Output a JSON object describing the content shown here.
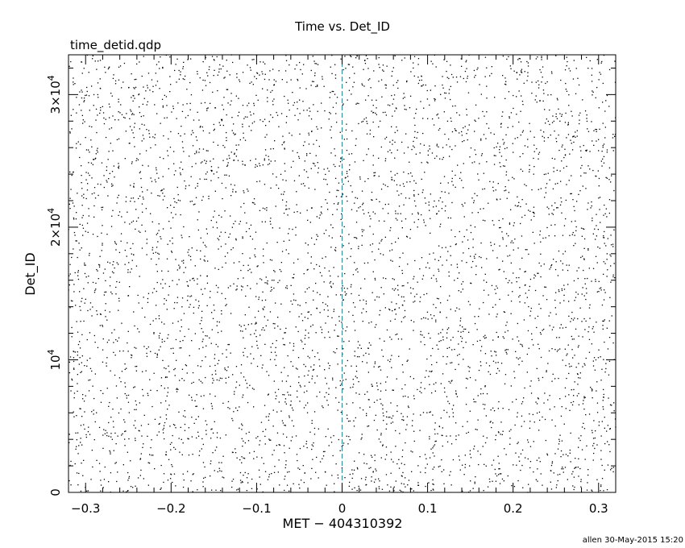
{
  "plot": {
    "title": "Time vs. Det_ID",
    "file_label": "time_detid.qdp",
    "footer": "allen 30-May-2015 15:20"
  },
  "chart_data": {
    "type": "scatter",
    "title": "Time vs. Det_ID",
    "xlabel": "MET − 404310392",
    "ylabel": "Det_ID",
    "xlim": [
      -0.32,
      0.32
    ],
    "ylim": [
      0,
      33000
    ],
    "x_ticks": [
      {
        "value": -0.3,
        "label": "−0.3"
      },
      {
        "value": -0.2,
        "label": "−0.2"
      },
      {
        "value": -0.1,
        "label": "−0.1"
      },
      {
        "value": 0,
        "label": "0"
      },
      {
        "value": 0.1,
        "label": "0.1"
      },
      {
        "value": 0.2,
        "label": "0.2"
      },
      {
        "value": 0.3,
        "label": "0.3"
      }
    ],
    "y_ticks": [
      {
        "value": 0,
        "mantissa": "0",
        "exponent": ""
      },
      {
        "value": 10000,
        "mantissa": "10",
        "exponent": "4"
      },
      {
        "value": 20000,
        "mantissa": "2×10",
        "exponent": "4"
      },
      {
        "value": 30000,
        "mantissa": "3×10",
        "exponent": "4"
      }
    ],
    "reference_line": {
      "x": 0,
      "color": "#2a8a9a",
      "style": "dashed"
    },
    "marker_color": "#000000",
    "point_count": 4800,
    "grid": false,
    "legend": "none"
  }
}
